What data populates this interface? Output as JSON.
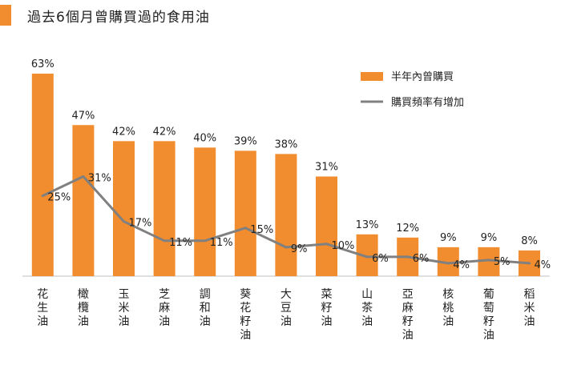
{
  "title": "過去6個月曾購買過的食用油",
  "colors": {
    "accent": "#F18D2E",
    "bar": "#F18D2E",
    "line": "#808080"
  },
  "chart_data": {
    "type": "bar",
    "categories": [
      "花生油",
      "橄欖油",
      "玉米油",
      "芝麻油",
      "調和油",
      "葵花籽油",
      "大豆油",
      "菜籽油",
      "山茶油",
      "亞麻籽油",
      "核桃油",
      "葡萄籽油",
      "稻米油"
    ],
    "series": [
      {
        "name": "半年內曾購買",
        "type": "bar",
        "values": [
          63,
          47,
          42,
          42,
          40,
          39,
          38,
          31,
          13,
          12,
          9,
          9,
          8
        ]
      },
      {
        "name": "購買頻率有增加",
        "type": "line",
        "values": [
          25,
          31,
          17,
          11,
          11,
          15,
          9,
          10,
          6,
          6,
          4,
          5,
          4
        ]
      }
    ],
    "value_suffix": "%",
    "ylim": [
      0,
      70
    ],
    "legend_position": "top-right",
    "grid": false
  }
}
